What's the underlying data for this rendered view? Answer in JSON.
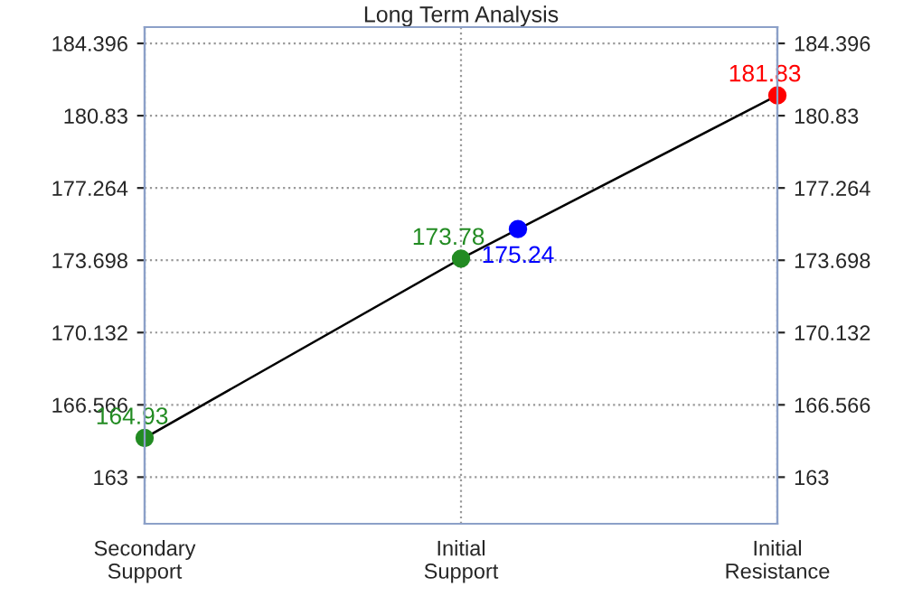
{
  "chart_data": {
    "type": "line",
    "title": "Long Term Analysis",
    "categories": [
      "Secondary\nSupport",
      "Initial\nSupport",
      "Initial\nResistance"
    ],
    "series": [
      {
        "color": "#000000",
        "values": [
          164.93,
          173.78,
          181.83
        ],
        "marker": "none"
      },
      {
        "type": "scatter",
        "colors": [
          "#228b22",
          "#228b22",
          "#ff0000"
        ],
        "values": [
          164.93,
          173.78,
          181.83
        ],
        "marker": "circle",
        "value_labels": [
          "164.93",
          "173.78",
          "181.83"
        ]
      },
      {
        "type": "scatter",
        "color": "#0000ff",
        "values": [
          null,
          175.24,
          null
        ],
        "marker": "circle",
        "value_labels": [
          null,
          "175.24",
          null
        ]
      }
    ],
    "ylim": [
      160.7,
      185.2
    ],
    "yticks": [
      163,
      166.566,
      170.132,
      173.698,
      177.264,
      180.83,
      184.396
    ],
    "y2lim": [
      160.7,
      185.2
    ],
    "y2ticks": [
      163,
      166.566,
      170.132,
      173.698,
      177.264,
      180.83,
      184.396
    ],
    "grid": true,
    "legend": false
  }
}
